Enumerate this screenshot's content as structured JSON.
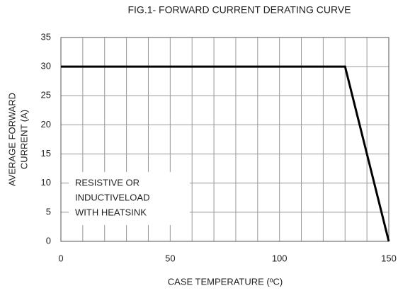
{
  "chart_data": {
    "type": "line",
    "title": "FIG.1- FORWARD CURRENT DERATING CURVE",
    "x_label": "CASE TEMPERATURE (ºC)",
    "y_label": [
      "AVERAGE FORWARD",
      "CURRENT (A)"
    ],
    "annotation": [
      "RESISTIVE OR",
      "INDUCTIVELOAD",
      "WITH HEATSINK"
    ],
    "x": [
      0,
      130,
      150
    ],
    "series": [
      {
        "color": "#000000",
        "values": [
          30,
          30,
          0
        ]
      }
    ],
    "xlim": [
      0,
      150
    ],
    "xticks": [
      0,
      50,
      100,
      150
    ],
    "x_grid": [
      0,
      10,
      20,
      30,
      40,
      50,
      60,
      70,
      80,
      90,
      100,
      110,
      120,
      130,
      140,
      150
    ],
    "ylim": [
      0,
      35
    ],
    "yticks": [
      0,
      5,
      10,
      15,
      20,
      25,
      30,
      35
    ],
    "grid": true
  }
}
